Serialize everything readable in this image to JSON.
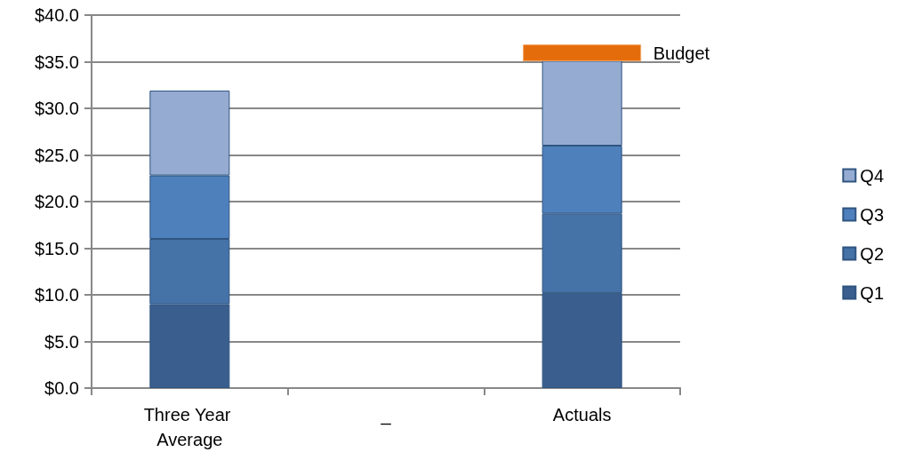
{
  "chart_data": {
    "type": "bar",
    "stacked": true,
    "categories": [
      "Three Year Average",
      "_",
      "Actuals"
    ],
    "series": [
      {
        "name": "Q1",
        "color": "#3a5f8e",
        "values": [
          9.0,
          null,
          10.2
        ]
      },
      {
        "name": "Q2",
        "color": "#4572a7",
        "values": [
          7.0,
          null,
          8.5
        ]
      },
      {
        "name": "Q3",
        "color": "#4e80bc",
        "values": [
          6.8,
          null,
          7.3
        ]
      },
      {
        "name": "Q4",
        "color": "#95abd1",
        "values": [
          9.1,
          null,
          9.1
        ]
      },
      {
        "name": "Budget",
        "type": "bar",
        "color": "#e46c0a",
        "base": [
          null,
          null,
          35.1
        ],
        "values": [
          null,
          null,
          1.7
        ]
      }
    ],
    "ylim": [
      0,
      40
    ],
    "yticks": [
      {
        "value": 0,
        "label": "$0.0"
      },
      {
        "value": 5,
        "label": "$5.0"
      },
      {
        "value": 10,
        "label": "$10.0"
      },
      {
        "value": 15,
        "label": "$15.0"
      },
      {
        "value": 20,
        "label": "$20.0"
      },
      {
        "value": 25,
        "label": "$25.0"
      },
      {
        "value": 30,
        "label": "$30.0"
      },
      {
        "value": 35,
        "label": "$35.0"
      },
      {
        "value": 40,
        "label": "$40.0"
      }
    ],
    "grid": "y",
    "legend": "right"
  }
}
